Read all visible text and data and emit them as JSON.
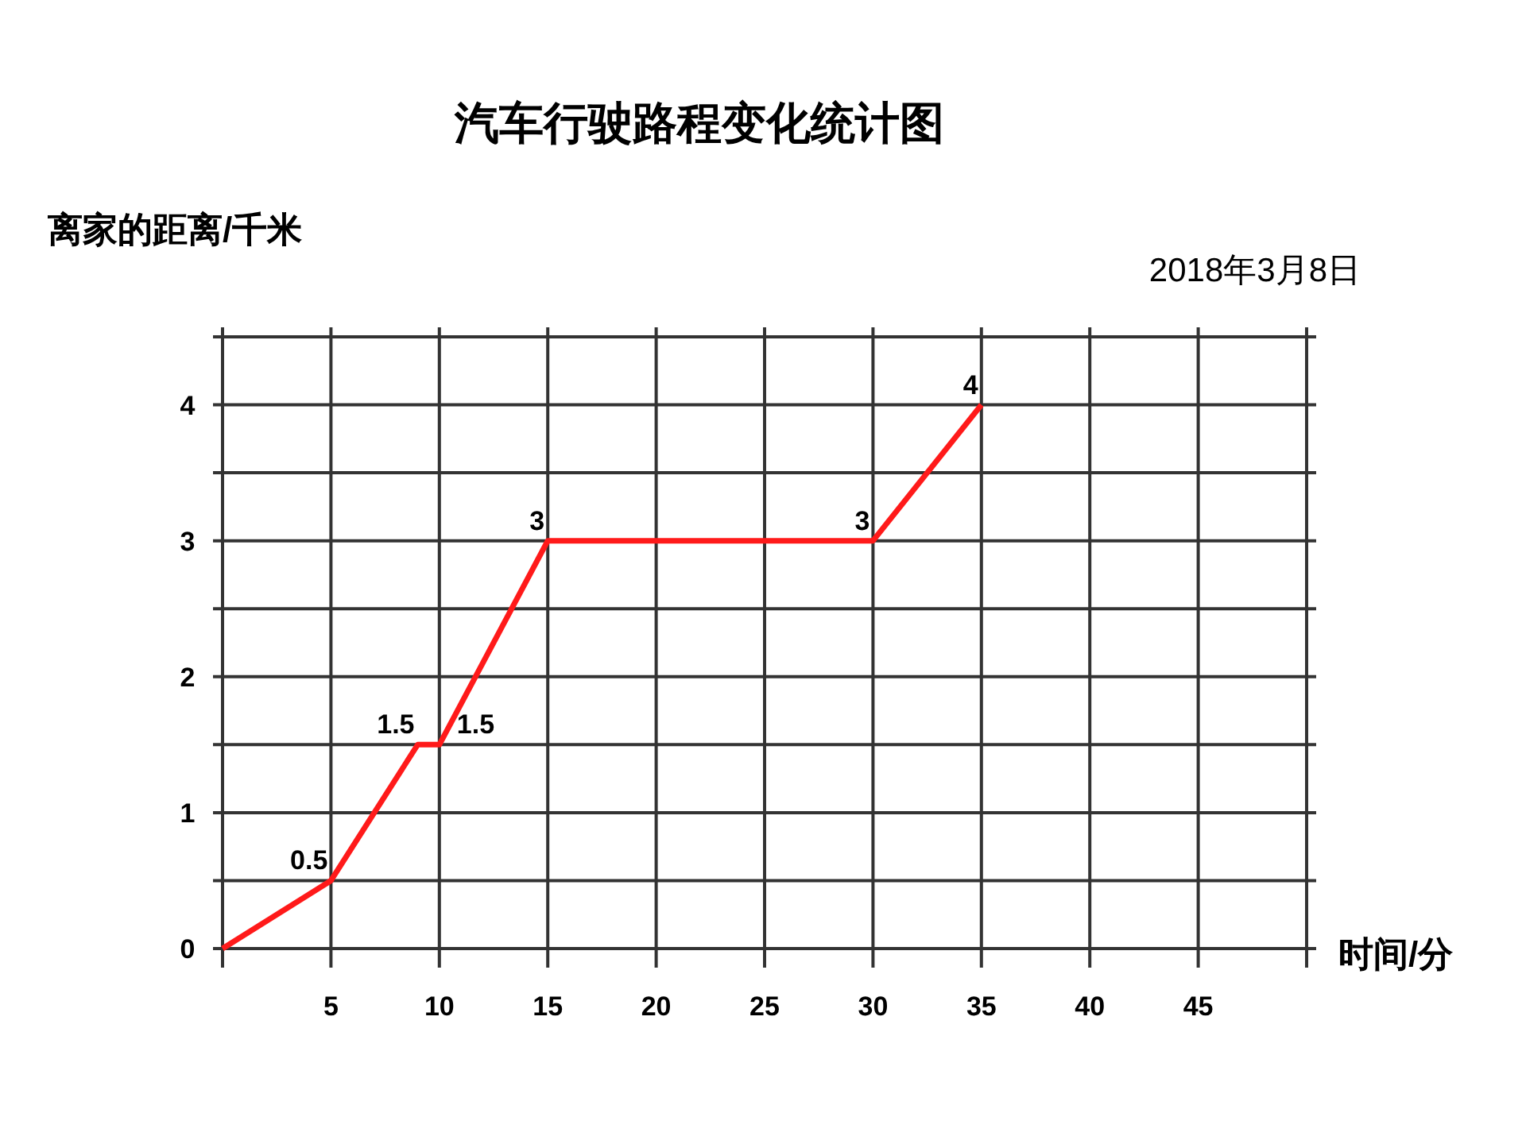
{
  "chart_data": {
    "type": "line",
    "title": "汽车行驶路程变化统计图",
    "ylabel": "离家的距离/千米",
    "xlabel": "时间/分",
    "annotations": [
      "2018年3月8日"
    ],
    "x": [
      0,
      5,
      9,
      10,
      15,
      30,
      35
    ],
    "series": [
      {
        "color": "#ff1a1a",
        "values": [
          0,
          0.5,
          1.5,
          1.5,
          3,
          3,
          4
        ],
        "value_labels": [
          null,
          "0.5",
          "1.5",
          "1.5",
          "3",
          "3",
          "4"
        ]
      }
    ],
    "xlim": [
      0,
      50
    ],
    "ylim": [
      0,
      4.5
    ],
    "xticks": [
      {
        "value": 0,
        "label": null
      },
      5,
      10,
      15,
      20,
      25,
      30,
      35,
      40,
      45,
      {
        "value": 50,
        "label": null
      }
    ],
    "yticks": [
      0,
      {
        "value": 0.5,
        "label": null
      },
      1,
      {
        "value": 1.5,
        "label": null
      },
      2,
      {
        "value": 2.5,
        "label": null
      },
      3,
      {
        "value": 3.5,
        "label": null
      },
      4,
      {
        "value": 4.5,
        "label": null
      }
    ],
    "grid": true,
    "marker": "none",
    "line_style": "solid"
  }
}
